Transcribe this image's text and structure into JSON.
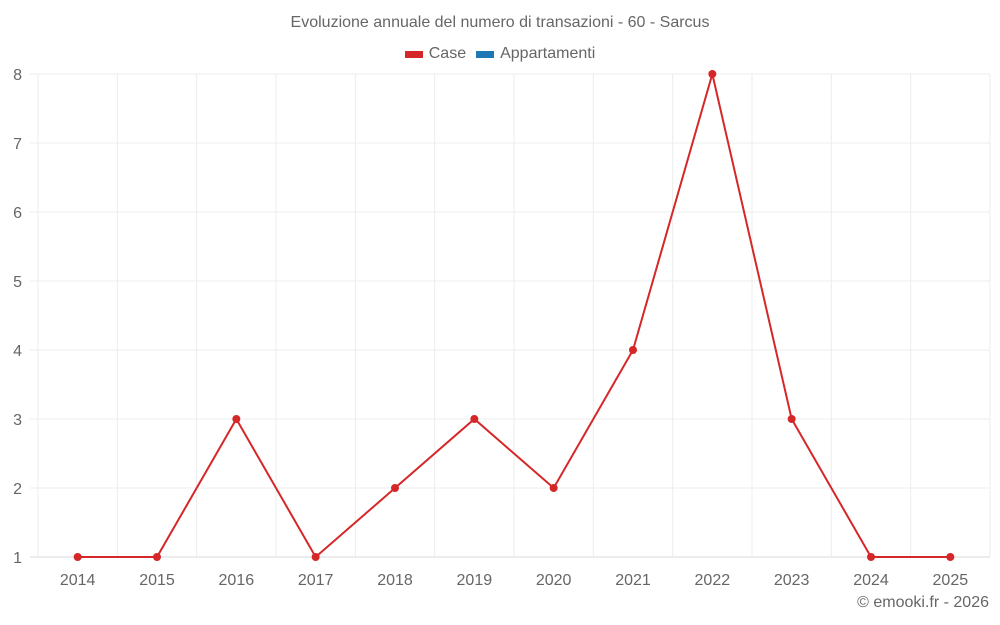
{
  "title": "Evoluzione annuale del numero di transazioni - 60 - Sarcus",
  "legend": [
    {
      "label": "Case",
      "color": "#d62728"
    },
    {
      "label": "Appartamenti",
      "color": "#1f77b4"
    }
  ],
  "credit": "© emooki.fr - 2026",
  "chart_data": {
    "type": "line",
    "title": "Evoluzione annuale del numero di transazioni - 60 - Sarcus",
    "xlabel": "",
    "ylabel": "",
    "categories": [
      "2014",
      "2015",
      "2016",
      "2017",
      "2018",
      "2019",
      "2020",
      "2021",
      "2022",
      "2023",
      "2024",
      "2025"
    ],
    "series": [
      {
        "name": "Case",
        "color": "#d62728",
        "values": [
          1,
          1,
          3,
          1,
          2,
          3,
          2,
          4,
          8,
          3,
          1,
          1
        ]
      },
      {
        "name": "Appartamenti",
        "color": "#1f77b4",
        "values": []
      }
    ],
    "ylim": [
      1,
      8
    ],
    "yticks": [
      1,
      2,
      3,
      4,
      5,
      6,
      7,
      8
    ],
    "grid": true,
    "legend_position": "top"
  }
}
